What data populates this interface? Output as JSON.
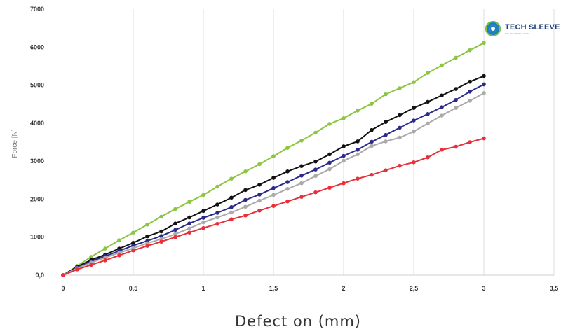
{
  "chart_data": {
    "type": "line",
    "xlabel": "Defect on (mm)",
    "ylabel": "Force [N]",
    "xlim": [
      0,
      3.5
    ],
    "ylim": [
      0,
      7000
    ],
    "xticks": [
      0,
      0.5,
      1,
      1.5,
      2,
      2.5,
      3,
      3.5
    ],
    "xtick_labels": [
      "0",
      "0,5",
      "1",
      "1,5",
      "2",
      "2,5",
      "3",
      "3,5"
    ],
    "yticks": [
      0,
      1000,
      2000,
      3000,
      4000,
      5000,
      6000,
      7000
    ],
    "ytick_labels": [
      "0,0",
      "1000",
      "2000",
      "3000",
      "4000",
      "5000",
      "6000",
      "7000"
    ],
    "grid": "vertical",
    "x": [
      0,
      0.1,
      0.2,
      0.3,
      0.4,
      0.5,
      0.6,
      0.7,
      0.8,
      0.9,
      1.0,
      1.1,
      1.2,
      1.3,
      1.4,
      1.5,
      1.6,
      1.7,
      1.8,
      1.9,
      2.0,
      2.1,
      2.2,
      2.3,
      2.4,
      2.5,
      2.6,
      2.7,
      2.8,
      2.9,
      3.0
    ],
    "series": [
      {
        "color": "#8cc63f",
        "values": [
          0,
          240,
          480,
          700,
          920,
          1120,
          1330,
          1540,
          1740,
          1930,
          2110,
          2330,
          2540,
          2730,
          2920,
          3130,
          3350,
          3540,
          3750,
          3980,
          4130,
          4330,
          4510,
          4760,
          4920,
          5080,
          5320,
          5520,
          5720,
          5920,
          6110
        ]
      },
      {
        "color": "#111111",
        "values": [
          0,
          220,
          400,
          540,
          700,
          850,
          1020,
          1150,
          1360,
          1520,
          1690,
          1860,
          2040,
          2240,
          2380,
          2560,
          2730,
          2870,
          2990,
          3180,
          3390,
          3520,
          3820,
          4030,
          4210,
          4400,
          4560,
          4730,
          4900,
          5090,
          5240
        ]
      },
      {
        "color": "#2a2a8c",
        "values": [
          0,
          200,
          360,
          500,
          640,
          780,
          900,
          1030,
          1190,
          1360,
          1510,
          1640,
          1790,
          1980,
          2120,
          2290,
          2450,
          2620,
          2780,
          2960,
          3140,
          3300,
          3510,
          3690,
          3880,
          4070,
          4240,
          4420,
          4610,
          4830,
          5020
        ]
      },
      {
        "color": "#aaaaaa",
        "values": [
          0,
          180,
          330,
          460,
          590,
          710,
          840,
          950,
          1080,
          1230,
          1390,
          1520,
          1650,
          1800,
          1960,
          2110,
          2270,
          2420,
          2610,
          2790,
          3010,
          3180,
          3400,
          3520,
          3620,
          3780,
          3990,
          4200,
          4400,
          4590,
          4790
        ]
      },
      {
        "color": "#e8303a",
        "values": [
          0,
          150,
          270,
          390,
          520,
          650,
          770,
          880,
          1000,
          1120,
          1240,
          1350,
          1470,
          1570,
          1700,
          1820,
          1940,
          2060,
          2180,
          2300,
          2420,
          2540,
          2640,
          2760,
          2880,
          2970,
          3100,
          3300,
          3380,
          3500,
          3600
        ]
      }
    ]
  },
  "logo": {
    "name": "TECH SLEEVE",
    "tagline": "THE POLYMERS LAYER"
  }
}
